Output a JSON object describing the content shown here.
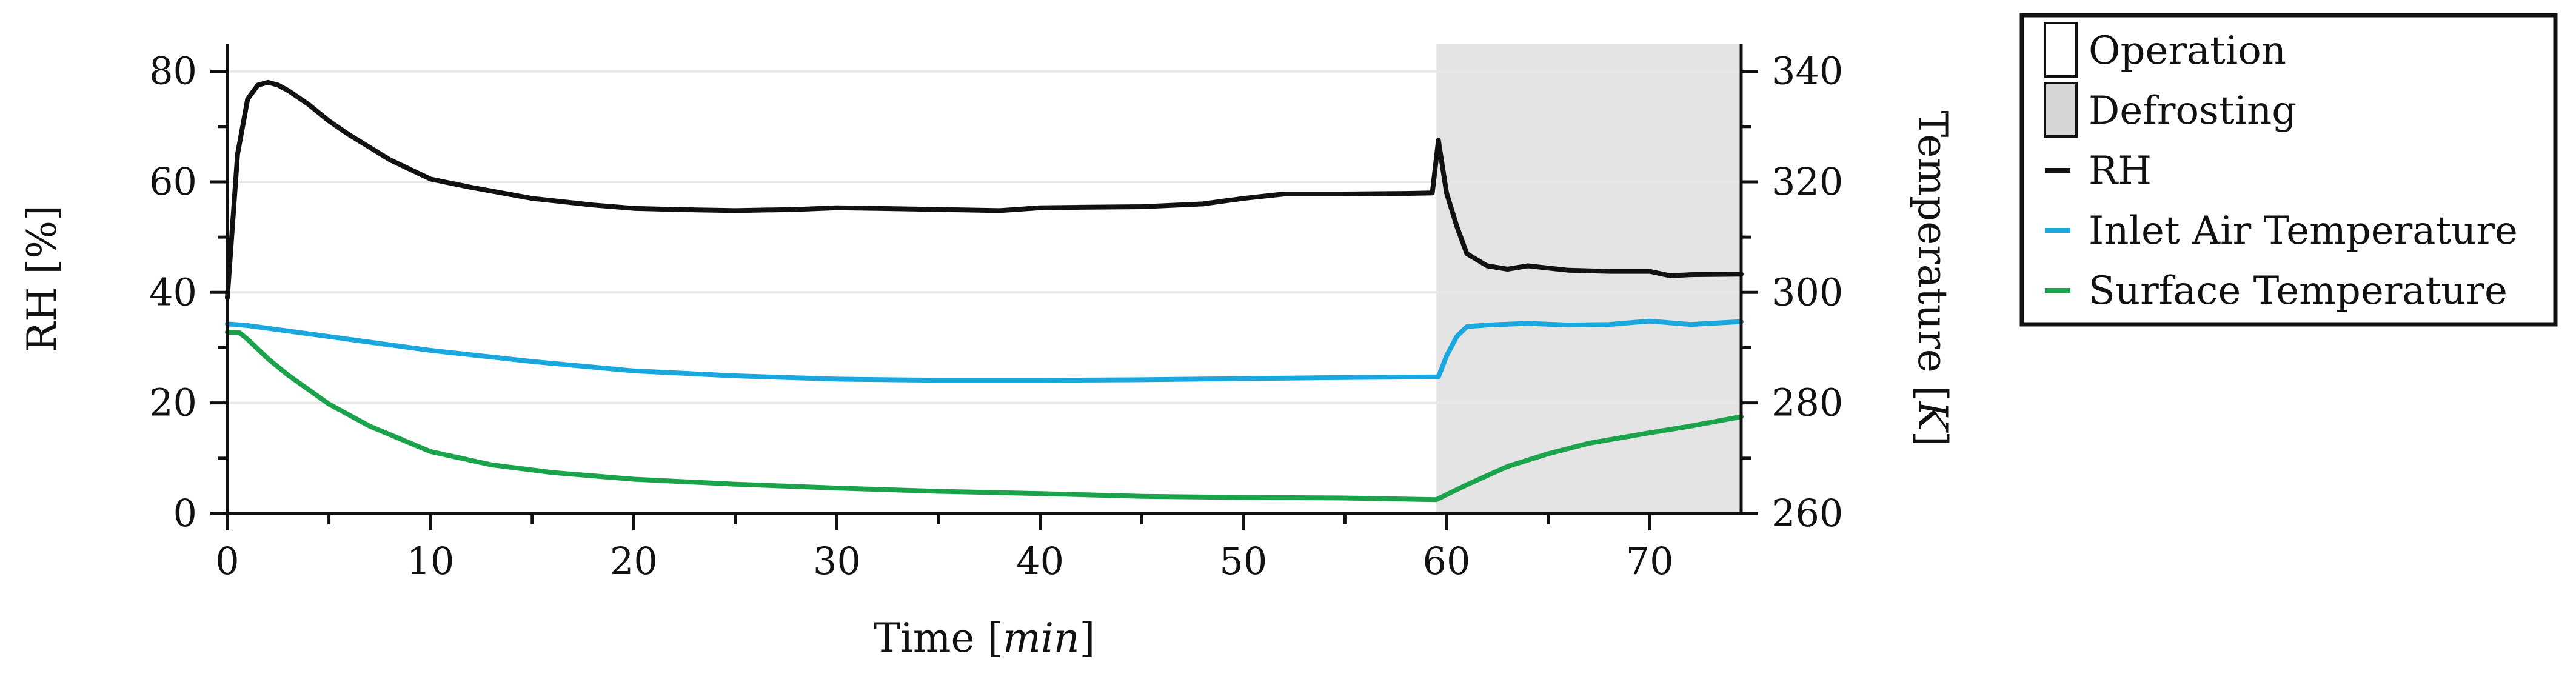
{
  "chart_data": {
    "type": "line",
    "xlabel": "Time [min]",
    "xlabel_main": "Time [",
    "xlabel_unit": "min",
    "xlabel_close": "]",
    "ylabel_left": "RH [%]",
    "ylabel_right_main": "Temperature [",
    "ylabel_right_unit": "K",
    "ylabel_right_close": "]",
    "xlim": [
      0,
      74.5
    ],
    "ylim_left": [
      0,
      85
    ],
    "ylim_right": [
      260,
      345
    ],
    "x_ticks": [
      0,
      10,
      20,
      30,
      40,
      50,
      60,
      70
    ],
    "y_left_ticks": [
      0,
      20,
      40,
      60,
      80
    ],
    "y_right_ticks": [
      260,
      280,
      300,
      320,
      340
    ],
    "grid": "horizontal",
    "legend_position": "right",
    "shaded_region": {
      "label": "Defrosting",
      "x_start": 59.5,
      "x_end": 74.5,
      "color": "#e4e4e4"
    },
    "legend": [
      {
        "label": "Operation",
        "kind": "box",
        "fill": "#ffffff"
      },
      {
        "label": "Defrosting",
        "kind": "box",
        "fill": "#d6d6d6"
      },
      {
        "label": "RH",
        "kind": "line",
        "color": "#111111"
      },
      {
        "label": "Inlet Air Temperature",
        "kind": "line",
        "color": "#1aa7e0"
      },
      {
        "label": "Surface Temperature",
        "kind": "line",
        "color": "#1aa34a"
      }
    ],
    "series": [
      {
        "name": "RH",
        "axis": "left",
        "color": "#111111",
        "x": [
          0,
          0.5,
          1,
          1.5,
          2,
          2.5,
          3,
          4,
          5,
          6,
          8,
          10,
          12,
          15,
          18,
          20,
          22,
          25,
          28,
          30,
          32,
          35,
          38,
          40,
          42,
          45,
          48,
          50,
          52,
          55,
          58,
          59.3,
          59.6,
          60,
          60.5,
          61,
          62,
          63,
          64,
          66,
          68,
          70,
          71,
          72,
          74.5
        ],
        "y": [
          39,
          65,
          75,
          77.5,
          78,
          77.5,
          76.5,
          74,
          71,
          68.5,
          64,
          60.5,
          59,
          57,
          55.8,
          55.2,
          55,
          54.8,
          55,
          55.3,
          55.2,
          55,
          54.8,
          55.3,
          55.4,
          55.5,
          56,
          57,
          57.8,
          57.8,
          57.9,
          58,
          67.5,
          58,
          52,
          47,
          44.8,
          44.2,
          44.8,
          44,
          43.8,
          43.8,
          43,
          43.2,
          43.3
        ]
      },
      {
        "name": "Inlet Air Temperature",
        "axis": "right",
        "color": "#1aa7e0",
        "x": [
          0,
          1,
          5,
          10,
          15,
          20,
          25,
          30,
          35,
          40,
          45,
          50,
          55,
          59.6,
          60,
          60.5,
          61,
          62,
          64,
          66,
          68,
          70,
          72,
          74.5
        ],
        "y": [
          294.3,
          294,
          292,
          289.5,
          287.5,
          285.8,
          284.9,
          284.3,
          284.1,
          284.1,
          284.2,
          284.4,
          284.6,
          284.7,
          288.5,
          292,
          293.8,
          294.1,
          294.4,
          294.1,
          294.2,
          294.8,
          294.2,
          294.7
        ]
      },
      {
        "name": "Surface Temperature",
        "axis": "right",
        "color": "#1aa34a",
        "x": [
          0,
          0.6,
          1,
          2,
          3,
          5,
          7,
          10,
          13,
          16,
          20,
          25,
          30,
          35,
          40,
          45,
          50,
          55,
          59.5,
          61,
          63,
          65,
          67,
          70,
          72,
          74.5
        ],
        "y": [
          292.8,
          292.7,
          291.5,
          288,
          285,
          279.8,
          275.8,
          271.2,
          268.8,
          267.4,
          266.2,
          265.3,
          264.6,
          264,
          263.6,
          263.1,
          262.9,
          262.8,
          262.5,
          265.2,
          268.5,
          270.8,
          272.7,
          274.6,
          275.8,
          277.5
        ]
      }
    ]
  }
}
